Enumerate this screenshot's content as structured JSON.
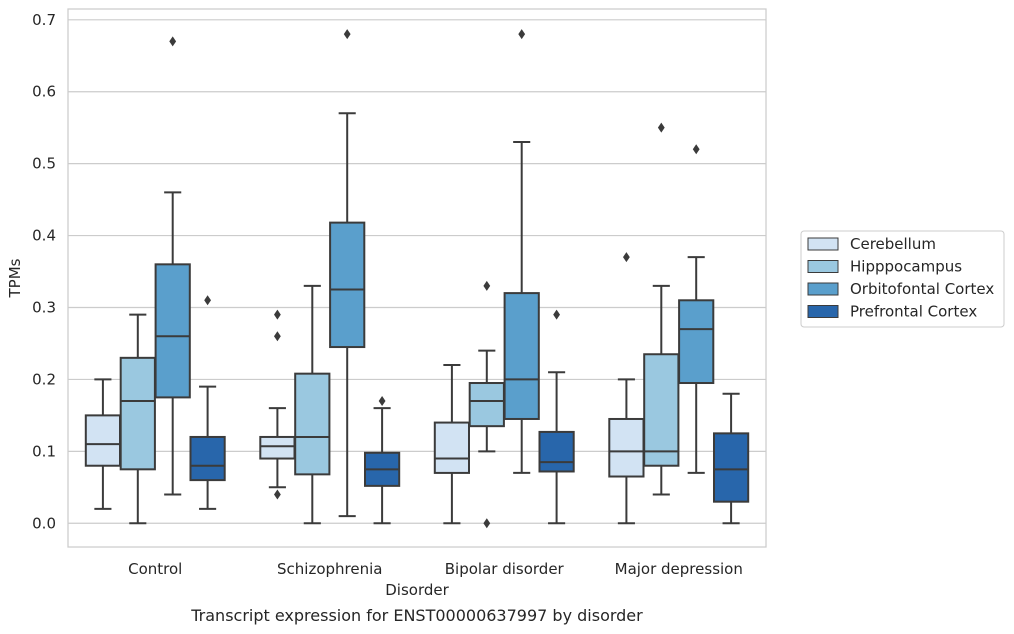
{
  "caption": "Transcript expression for ENST00000637997 by disorder",
  "chart_data": {
    "type": "box",
    "xlabel": "Disorder",
    "ylabel": "TPMs",
    "ylim": [
      -0.033,
      0.715
    ],
    "yticks": [
      0.0,
      0.1,
      0.2,
      0.3,
      0.4,
      0.5,
      0.6,
      0.7
    ],
    "ytick_labels": [
      "0.0",
      "0.1",
      "0.2",
      "0.3",
      "0.4",
      "0.5",
      "0.6",
      "0.7"
    ],
    "grid": "horizontal",
    "legend_position": "right",
    "categories": [
      "Control",
      "Schizophrenia",
      "Bipolar disorder",
      "Major depression"
    ],
    "series": [
      {
        "name": "Cerebellum",
        "color": "#d2e3f3",
        "boxes": [
          {
            "q1": 0.08,
            "median": 0.11,
            "q3": 0.15,
            "whislo": 0.02,
            "whishi": 0.2,
            "fliers": []
          },
          {
            "q1": 0.09,
            "median": 0.107,
            "q3": 0.12,
            "whislo": 0.05,
            "whishi": 0.16,
            "fliers": [
              0.04,
              0.26,
              0.29
            ]
          },
          {
            "q1": 0.07,
            "median": 0.09,
            "q3": 0.14,
            "whislo": 0.0,
            "whishi": 0.22,
            "fliers": []
          },
          {
            "q1": 0.065,
            "median": 0.1,
            "q3": 0.145,
            "whislo": 0.0,
            "whishi": 0.2,
            "fliers": [
              0.37
            ]
          }
        ]
      },
      {
        "name": "Hipppocampus",
        "color": "#9ac8e0",
        "boxes": [
          {
            "q1": 0.075,
            "median": 0.17,
            "q3": 0.23,
            "whislo": 0.0,
            "whishi": 0.29,
            "fliers": []
          },
          {
            "q1": 0.068,
            "median": 0.12,
            "q3": 0.208,
            "whislo": 0.0,
            "whishi": 0.33,
            "fliers": []
          },
          {
            "q1": 0.135,
            "median": 0.17,
            "q3": 0.195,
            "whislo": 0.1,
            "whishi": 0.24,
            "fliers": [
              0.0,
              0.33
            ]
          },
          {
            "q1": 0.08,
            "median": 0.1,
            "q3": 0.235,
            "whislo": 0.04,
            "whishi": 0.33,
            "fliers": [
              0.55
            ]
          }
        ]
      },
      {
        "name": "Orbitofontal Cortex",
        "color": "#5a9fcc",
        "boxes": [
          {
            "q1": 0.175,
            "median": 0.26,
            "q3": 0.36,
            "whislo": 0.04,
            "whishi": 0.46,
            "fliers": [
              0.67
            ]
          },
          {
            "q1": 0.245,
            "median": 0.325,
            "q3": 0.418,
            "whislo": 0.01,
            "whishi": 0.57,
            "fliers": [
              0.68
            ]
          },
          {
            "q1": 0.145,
            "median": 0.2,
            "q3": 0.32,
            "whislo": 0.07,
            "whishi": 0.53,
            "fliers": [
              0.68
            ]
          },
          {
            "q1": 0.195,
            "median": 0.27,
            "q3": 0.31,
            "whislo": 0.07,
            "whishi": 0.37,
            "fliers": [
              0.52
            ]
          }
        ]
      },
      {
        "name": "Prefrontal Cortex",
        "color": "#2866ab",
        "boxes": [
          {
            "q1": 0.06,
            "median": 0.08,
            "q3": 0.12,
            "whislo": 0.02,
            "whishi": 0.19,
            "fliers": [
              0.31
            ]
          },
          {
            "q1": 0.052,
            "median": 0.075,
            "q3": 0.098,
            "whislo": 0.0,
            "whishi": 0.16,
            "fliers": [
              0.17
            ]
          },
          {
            "q1": 0.072,
            "median": 0.085,
            "q3": 0.127,
            "whislo": 0.0,
            "whishi": 0.21,
            "fliers": [
              0.29
            ]
          },
          {
            "q1": 0.03,
            "median": 0.075,
            "q3": 0.125,
            "whislo": 0.0,
            "whishi": 0.18,
            "fliers": []
          }
        ]
      }
    ]
  }
}
